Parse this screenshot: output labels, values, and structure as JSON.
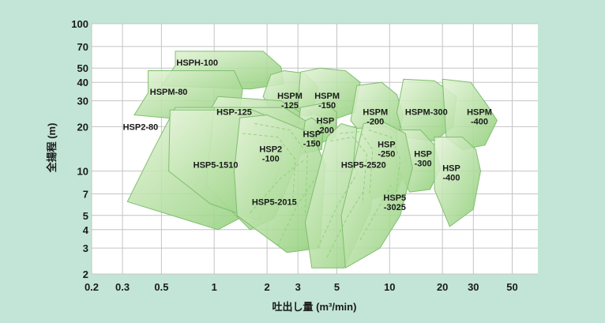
{
  "chart_data": {
    "type": "area",
    "xlabel": "吐出し量 (m³/min)",
    "ylabel": "全揚程 (m)",
    "x_scale": "log",
    "y_scale": "log",
    "xlim": [
      0.2,
      70
    ],
    "ylim": [
      2,
      100
    ],
    "x_ticks": [
      0.2,
      0.3,
      0.5,
      1,
      2,
      3,
      5,
      10,
      20,
      30,
      50
    ],
    "y_ticks": [
      2,
      3,
      4,
      5,
      7,
      10,
      20,
      30,
      40,
      50,
      70,
      100
    ],
    "grid": true,
    "colors": {
      "background": "#c2e5d8",
      "plot_area": "#ffffff",
      "grid": "#c4c4c4",
      "region_fill_start": "#e6f4da",
      "region_fill_end": "#8ccd74",
      "region_stroke": "#7fbf6e"
    },
    "series": [
      {
        "name": "HSPH-100",
        "label_lines": [
          "HSPH-100"
        ],
        "label_at": [
          0.8,
          52
        ],
        "polygon": [
          [
            0.6,
            65
          ],
          [
            1.9,
            65
          ],
          [
            2.4,
            51
          ],
          [
            2.5,
            39
          ],
          [
            1.6,
            36
          ],
          [
            0.5,
            38
          ],
          [
            0.6,
            52
          ]
        ]
      },
      {
        "name": "HSPM-80",
        "label_lines": [
          "HSPM-80"
        ],
        "label_at": [
          0.55,
          33
        ],
        "polygon": [
          [
            0.42,
            48
          ],
          [
            1.3,
            48
          ],
          [
            1.45,
            36
          ],
          [
            1.4,
            26
          ],
          [
            0.8,
            22
          ],
          [
            0.35,
            24
          ],
          [
            0.42,
            34
          ]
        ]
      },
      {
        "name": "HSPM-125",
        "label_lines": [
          "HSPM",
          "-125"
        ],
        "label_at": [
          2.7,
          31
        ],
        "polygon": [
          [
            2.1,
            45
          ],
          [
            2.5,
            48
          ],
          [
            3.3,
            46
          ],
          [
            3.9,
            37
          ],
          [
            3.6,
            24
          ],
          [
            2.3,
            23
          ],
          [
            1.9,
            32
          ]
        ]
      },
      {
        "name": "HSPM-150",
        "label_lines": [
          "HSPM",
          "-150"
        ],
        "label_at": [
          4.4,
          31
        ],
        "polygon": [
          [
            3.1,
            47
          ],
          [
            4.0,
            50
          ],
          [
            5.6,
            48
          ],
          [
            6.8,
            40
          ],
          [
            6.3,
            25
          ],
          [
            4.6,
            22
          ],
          [
            3.0,
            27
          ]
        ]
      },
      {
        "name": "HSPM-200",
        "label_lines": [
          "HSPM",
          "-200"
        ],
        "label_at": [
          8.3,
          24
        ],
        "polygon": [
          [
            6.5,
            38
          ],
          [
            9.0,
            40
          ],
          [
            11,
            33
          ],
          [
            12,
            24
          ],
          [
            11,
            16
          ],
          [
            7.8,
            15
          ],
          [
            6.0,
            22
          ]
        ]
      },
      {
        "name": "HSPM-300",
        "label_lines": [
          "HSPM-300"
        ],
        "label_at": [
          16.2,
          24
        ],
        "polygon": [
          [
            12,
            42
          ],
          [
            18,
            41
          ],
          [
            24,
            32
          ],
          [
            23,
            20
          ],
          [
            18,
            16
          ],
          [
            12,
            17
          ],
          [
            11,
            25
          ]
        ]
      },
      {
        "name": "HSPM-400",
        "label_lines": [
          "HSPM",
          "-400"
        ],
        "label_at": [
          32.5,
          24
        ],
        "polygon": [
          [
            20,
            42
          ],
          [
            29,
            40
          ],
          [
            36,
            28
          ],
          [
            41,
            22
          ],
          [
            35,
            15
          ],
          [
            26,
            14
          ],
          [
            21,
            17
          ]
        ]
      },
      {
        "name": "HSP-125",
        "label_lines": [
          "HSP-125"
        ],
        "label_at": [
          1.3,
          24
        ],
        "polygon": [
          [
            1.05,
            32
          ],
          [
            2.4,
            30
          ],
          [
            3.1,
            25
          ],
          [
            2.9,
            17
          ],
          [
            1.6,
            14
          ],
          [
            0.9,
            17
          ],
          [
            0.95,
            26
          ]
        ]
      },
      {
        "name": "HSP-200",
        "label_lines": [
          "HSP",
          "-200"
        ],
        "label_at": [
          4.3,
          21
        ],
        "polygon": [
          [
            3.1,
            27
          ],
          [
            4.3,
            29
          ],
          [
            5.0,
            25
          ],
          [
            4.9,
            17
          ],
          [
            3.8,
            15
          ],
          [
            3.0,
            18
          ]
        ]
      },
      {
        "name": "HSP-150",
        "label_lines": [
          "HSP",
          "-150"
        ],
        "label_at": [
          3.6,
          17
        ],
        "polygon": [
          [
            2.8,
            20
          ],
          [
            3.6,
            23
          ],
          [
            4.2,
            20
          ],
          [
            4.1,
            14
          ],
          [
            3.1,
            13
          ],
          [
            2.6,
            16
          ]
        ]
      },
      {
        "name": "HSP2-80",
        "label_lines": [
          "HSP2-80"
        ],
        "label_at": [
          0.38,
          19
        ],
        "polygon": [
          [
            0.6,
            27
          ],
          [
            1.55,
            27
          ],
          [
            2.05,
            24
          ],
          [
            1.5,
            5.0
          ],
          [
            1.05,
            4.0
          ],
          [
            0.32,
            6.2
          ],
          [
            0.45,
            14
          ]
        ]
      },
      {
        "name": "HSP2-100",
        "label_lines": [
          "HSP2",
          "-100"
        ],
        "label_at": [
          2.1,
          13.5
        ],
        "polygon": [
          [
            1.0,
            27
          ],
          [
            2.5,
            27
          ],
          [
            3.3,
            22
          ],
          [
            3.1,
            13
          ],
          [
            2.2,
            4.8
          ],
          [
            1.6,
            4.0
          ],
          [
            0.9,
            8
          ]
        ]
      },
      {
        "name": "HSP5-1510",
        "label_lines": [
          "HSP5-1510"
        ],
        "label_at": [
          1.02,
          10.5
        ],
        "polygon": [
          [
            0.56,
            26
          ],
          [
            1.65,
            26
          ],
          [
            2.55,
            21
          ],
          [
            2.35,
            10
          ],
          [
            1.8,
            4.6
          ],
          [
            0.95,
            6.0
          ],
          [
            0.55,
            10
          ]
        ]
      },
      {
        "name": "HSP5-2015",
        "label_lines": [
          "HSP5-2015"
        ],
        "label_at": [
          2.2,
          5.9
        ],
        "polygon": [
          [
            1.4,
            23
          ],
          [
            2.0,
            24
          ],
          [
            3.6,
            18
          ],
          [
            4.3,
            11
          ],
          [
            4.0,
            3.0
          ],
          [
            2.6,
            2.8
          ],
          [
            1.35,
            5.0
          ],
          [
            1.3,
            10
          ]
        ]
      },
      {
        "name": "HSP5-2520",
        "label_lines": [
          "HSP5-2520"
        ],
        "label_at": [
          7.1,
          10.5
        ],
        "polygon": [
          [
            4.4,
            17
          ],
          [
            5.3,
            21
          ],
          [
            7.1,
            19
          ],
          [
            8.5,
            14
          ],
          [
            7.8,
            5.5
          ],
          [
            5.5,
            2.2
          ],
          [
            3.6,
            2.2
          ],
          [
            3.3,
            4.5
          ]
        ]
      },
      {
        "name": "HSP-250",
        "label_lines": [
          "HSP",
          "-250"
        ],
        "label_at": [
          9.6,
          14.5
        ],
        "polygon": [
          [
            6.5,
            19.5
          ],
          [
            9.5,
            20
          ],
          [
            12,
            17
          ],
          [
            12.5,
            11
          ],
          [
            11,
            7.2
          ],
          [
            8.0,
            6.5
          ],
          [
            6.2,
            11
          ]
        ]
      },
      {
        "name": "HSP-300",
        "label_lines": [
          "HSP",
          "-300"
        ],
        "label_at": [
          15.5,
          12.5
        ],
        "polygon": [
          [
            11,
            19
          ],
          [
            15,
            19
          ],
          [
            18,
            15
          ],
          [
            19.5,
            10.5
          ],
          [
            17,
            7.5
          ],
          [
            13,
            7.2
          ],
          [
            11,
            11
          ]
        ]
      },
      {
        "name": "HSP-400",
        "label_lines": [
          "HSP",
          "-400"
        ],
        "label_at": [
          22.5,
          10
        ],
        "polygon": [
          [
            18,
            17
          ],
          [
            26,
            17
          ],
          [
            31,
            14
          ],
          [
            33,
            10
          ],
          [
            30,
            5.5
          ],
          [
            22,
            4.2
          ],
          [
            18,
            7.5
          ]
        ]
      },
      {
        "name": "HSP5-3025",
        "label_lines": [
          "HSP5",
          "-3025"
        ],
        "label_at": [
          10.7,
          6.3
        ],
        "polygon": [
          [
            7.1,
            21
          ],
          [
            8.9,
            22
          ],
          [
            12.3,
            18
          ],
          [
            13.5,
            10.5
          ],
          [
            11.5,
            5.0
          ],
          [
            8.8,
            3.0
          ],
          [
            5.6,
            2.2
          ],
          [
            5.3,
            5.0
          ]
        ]
      }
    ]
  }
}
